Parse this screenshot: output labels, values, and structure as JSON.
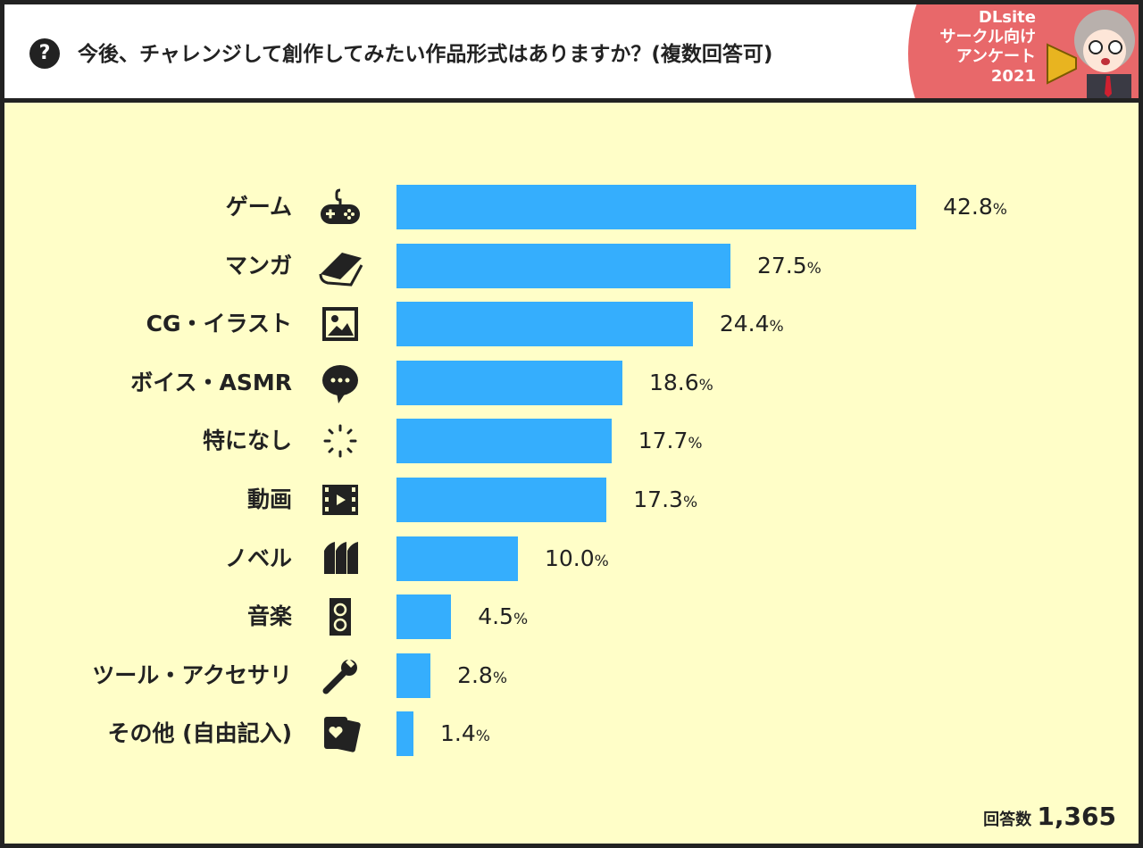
{
  "header": {
    "title": "今後、チャレンジして創作してみたい作品形式はありますか？(複数回答可)",
    "badge_lines": [
      "DLsite",
      "サークル向け",
      "アンケート",
      "2021"
    ]
  },
  "chart_data": {
    "type": "bar",
    "orientation": "horizontal",
    "categories": [
      "ゲーム",
      "マンガ",
      "CG・イラスト",
      "ボイス・ASMR",
      "特になし",
      "動画",
      "ノベル",
      "音楽",
      "ツール・アクセサリ",
      "その他 (自由記入)"
    ],
    "icons": [
      "gamepad-icon",
      "book-icon",
      "picture-icon",
      "speech-bubble-icon",
      "loading-icon",
      "film-icon",
      "books-icon",
      "speaker-icon",
      "wrench-icon",
      "cards-icon"
    ],
    "values": [
      42.8,
      27.5,
      24.4,
      18.6,
      17.7,
      17.3,
      10.0,
      4.5,
      2.8,
      1.4
    ],
    "unit": "%",
    "bar_color": "#35aefd",
    "background_color": "#fffec8"
  },
  "footer": {
    "total_label": "回答数",
    "total_value": "1,365"
  }
}
